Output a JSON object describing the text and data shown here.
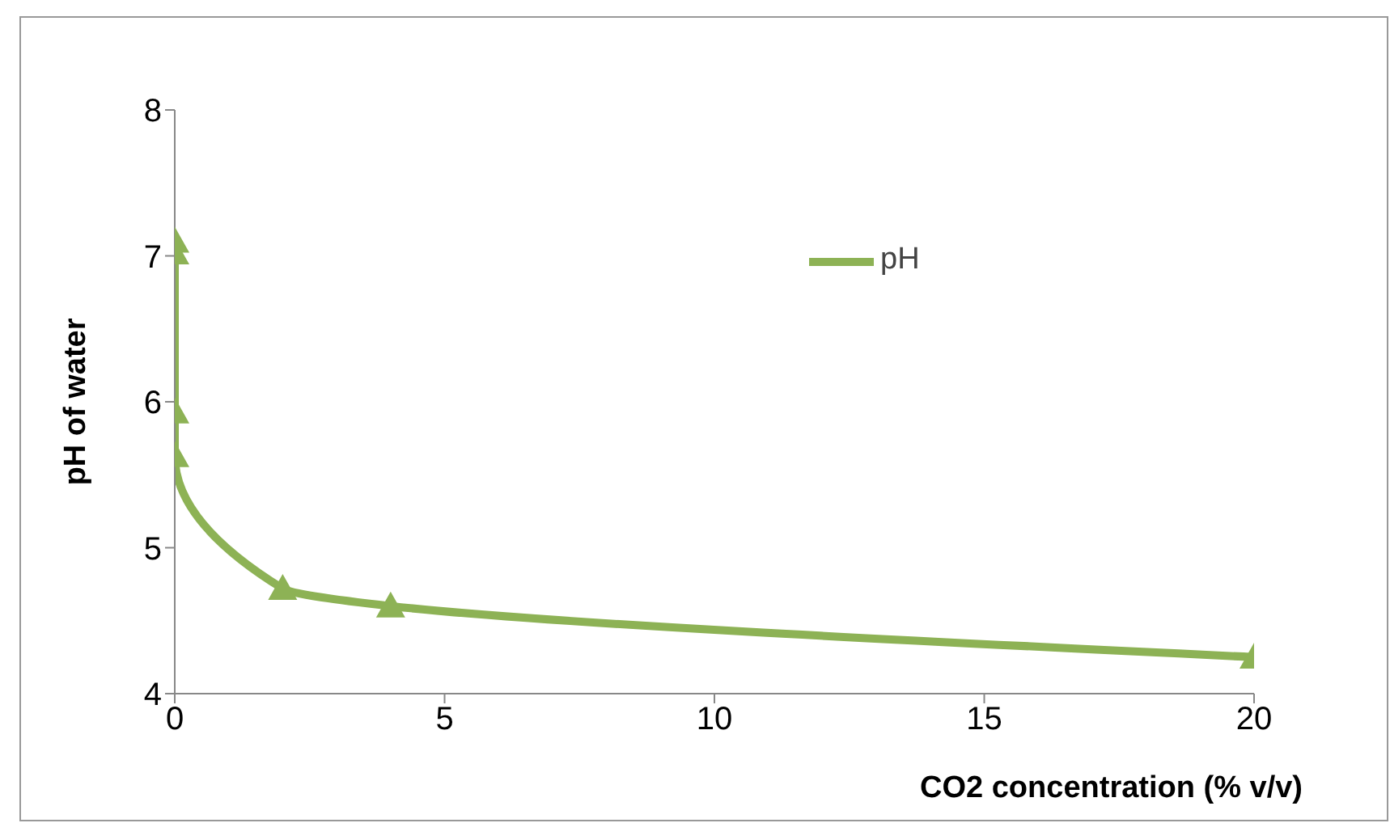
{
  "chart_data": {
    "type": "line",
    "xlabel": "CO2 concentration (% v/v)",
    "ylabel": "pH of water",
    "x": [
      0,
      0,
      0,
      0,
      2,
      4,
      20
    ],
    "series": [
      {
        "name": "pH",
        "color": "#8db255",
        "values": [
          7.1,
          7.02,
          5.93,
          5.63,
          4.72,
          4.6,
          4.25
        ]
      }
    ],
    "xlim": [
      0,
      20
    ],
    "xticks": [
      0,
      5,
      10,
      15,
      20
    ],
    "ylim": [
      4,
      8
    ],
    "yticks": [
      4,
      5,
      6,
      7,
      8
    ],
    "grid": false,
    "legend": "top right",
    "marker": "triangle",
    "line_style": "solid"
  }
}
